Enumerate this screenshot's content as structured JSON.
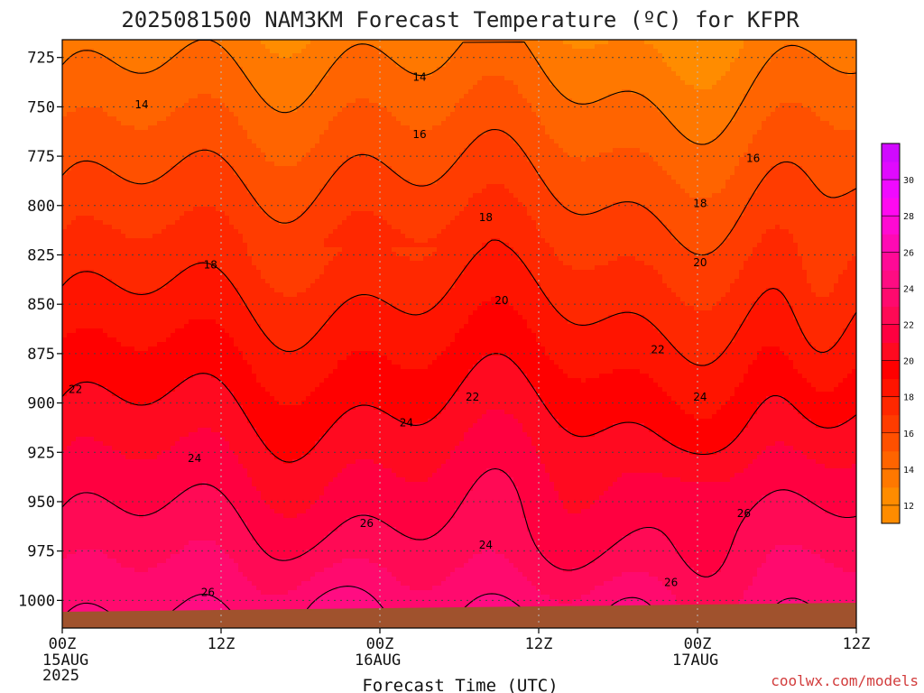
{
  "chart_data": {
    "type": "heatmap",
    "title": "2025081500 NAM3KM Forecast Temperature (ºC) for KFPR",
    "xlabel": "Forecast Time (UTC)",
    "ylabel": "",
    "x_ticks": [
      "00Z",
      "12Z",
      "00Z",
      "12Z",
      "00Z",
      "12Z"
    ],
    "x_tick_sublabels": [
      [
        "15AUG",
        "2025"
      ],
      [],
      [
        "16AUG"
      ],
      [],
      [
        "17AUG"
      ],
      []
    ],
    "x_range_hours": [
      0,
      60
    ],
    "y_range_hpa": [
      1014,
      716
    ],
    "y_ticks": [
      725,
      750,
      775,
      800,
      825,
      850,
      875,
      900,
      925,
      950,
      975,
      1000
    ],
    "colorbar_ticks": [
      12,
      14,
      16,
      18,
      20,
      22,
      24,
      26,
      28,
      30
    ],
    "colorbar_range": [
      11,
      32
    ],
    "levels": [
      12,
      13,
      14,
      15,
      16,
      17,
      18,
      19,
      20,
      21,
      22,
      23,
      24,
      25,
      26,
      27,
      28,
      29,
      30,
      31
    ],
    "colors": [
      "#ff8c00",
      "#ff7800",
      "#ff6400",
      "#ff5000",
      "#ff3c00",
      "#ff2800",
      "#ff1400",
      "#ff0000",
      "#ff0a20",
      "#ff0040",
      "#ff0a55",
      "#ff0a6e",
      "#ff0c82",
      "#ff0a96",
      "#ff0ab4",
      "#ff0ad2",
      "#ff0af0",
      "#f00aff",
      "#e00aff",
      "#d00aff"
    ],
    "contour_labels": [
      {
        "value": "14",
        "t": 6.0,
        "p": 749
      },
      {
        "value": "14",
        "t": 27.0,
        "p": 735
      },
      {
        "value": "16",
        "t": 27.0,
        "p": 764
      },
      {
        "value": "16",
        "t": 52.2,
        "p": 776
      },
      {
        "value": "18",
        "t": 11.2,
        "p": 830
      },
      {
        "value": "18",
        "t": 32.0,
        "p": 806
      },
      {
        "value": "18",
        "t": 48.2,
        "p": 799
      },
      {
        "value": "20",
        "t": 33.2,
        "p": 848
      },
      {
        "value": "20",
        "t": 48.2,
        "p": 829
      },
      {
        "value": "22",
        "t": 1.0,
        "p": 893
      },
      {
        "value": "22",
        "t": 31.0,
        "p": 897
      },
      {
        "value": "22",
        "t": 45.0,
        "p": 873
      },
      {
        "value": "24",
        "t": 10.0,
        "p": 928
      },
      {
        "value": "24",
        "t": 26.0,
        "p": 910
      },
      {
        "value": "24",
        "t": 48.2,
        "p": 897
      },
      {
        "value": "24",
        "t": 32.0,
        "p": 972
      },
      {
        "value": "26",
        "t": 23.0,
        "p": 961
      },
      {
        "value": "26",
        "t": 51.5,
        "p": 956
      },
      {
        "value": "26",
        "t": 46.0,
        "p": 991
      },
      {
        "value": "26",
        "t": 11.0,
        "p": 996
      }
    ]
  },
  "credit": "coolwx.com/models"
}
